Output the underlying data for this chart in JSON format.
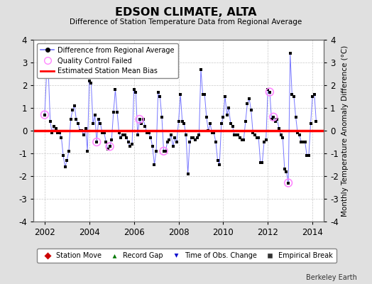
{
  "title": "EDSON CLIMATE, ALTA",
  "subtitle": "Difference of Station Temperature Data from Regional Average",
  "ylabel_right": "Monthly Temperature Anomaly Difference (°C)",
  "ylim": [
    -4,
    4
  ],
  "xlim": [
    2001.5,
    2014.5
  ],
  "bias_value": 0.0,
  "background_color": "#e0e0e0",
  "plot_bg_color": "#ffffff",
  "grid_color": "#c8c8c8",
  "line_color": "#7777ff",
  "dot_color": "#000000",
  "bias_color": "#ff0000",
  "qc_color": "#ff88ff",
  "watermark": "Berkeley Earth",
  "xticks": [
    2002,
    2004,
    2006,
    2008,
    2010,
    2012,
    2014
  ],
  "yticks": [
    -4,
    -3,
    -2,
    -1,
    0,
    1,
    2,
    3,
    4
  ],
  "monthly_data": [
    [
      2002.0,
      0.7
    ],
    [
      2002.083,
      2.4
    ],
    [
      2002.167,
      2.6
    ],
    [
      2002.25,
      0.4
    ],
    [
      2002.333,
      -0.1
    ],
    [
      2002.417,
      0.2
    ],
    [
      2002.5,
      0.1
    ],
    [
      2002.583,
      -0.1
    ],
    [
      2002.667,
      -0.1
    ],
    [
      2002.75,
      -0.3
    ],
    [
      2002.833,
      -1.1
    ],
    [
      2002.917,
      -1.6
    ],
    [
      2003.0,
      -1.3
    ],
    [
      2003.083,
      -0.9
    ],
    [
      2003.167,
      0.5
    ],
    [
      2003.25,
      0.9
    ],
    [
      2003.333,
      1.1
    ],
    [
      2003.417,
      0.5
    ],
    [
      2003.5,
      0.3
    ],
    [
      2003.583,
      0.0
    ],
    [
      2003.667,
      0.0
    ],
    [
      2003.75,
      -0.2
    ],
    [
      2003.833,
      0.1
    ],
    [
      2003.917,
      -0.9
    ],
    [
      2004.0,
      2.2
    ],
    [
      2004.083,
      2.1
    ],
    [
      2004.167,
      0.3
    ],
    [
      2004.25,
      0.7
    ],
    [
      2004.333,
      -0.5
    ],
    [
      2004.417,
      0.5
    ],
    [
      2004.5,
      0.3
    ],
    [
      2004.583,
      -0.1
    ],
    [
      2004.667,
      -0.1
    ],
    [
      2004.75,
      -0.5
    ],
    [
      2004.833,
      -0.8
    ],
    [
      2004.917,
      -0.7
    ],
    [
      2005.0,
      -0.4
    ],
    [
      2005.083,
      0.8
    ],
    [
      2005.167,
      1.8
    ],
    [
      2005.25,
      0.8
    ],
    [
      2005.333,
      -0.1
    ],
    [
      2005.417,
      -0.3
    ],
    [
      2005.5,
      -0.2
    ],
    [
      2005.583,
      -0.2
    ],
    [
      2005.667,
      -0.3
    ],
    [
      2005.75,
      -0.5
    ],
    [
      2005.833,
      -0.7
    ],
    [
      2005.917,
      -0.6
    ],
    [
      2006.0,
      1.8
    ],
    [
      2006.083,
      1.7
    ],
    [
      2006.167,
      -0.2
    ],
    [
      2006.25,
      0.5
    ],
    [
      2006.333,
      0.3
    ],
    [
      2006.417,
      0.5
    ],
    [
      2006.5,
      0.2
    ],
    [
      2006.583,
      -0.1
    ],
    [
      2006.667,
      -0.1
    ],
    [
      2006.75,
      -0.3
    ],
    [
      2006.833,
      -0.7
    ],
    [
      2006.917,
      -1.5
    ],
    [
      2007.0,
      -0.9
    ],
    [
      2007.083,
      1.7
    ],
    [
      2007.167,
      1.5
    ],
    [
      2007.25,
      0.6
    ],
    [
      2007.333,
      -0.9
    ],
    [
      2007.417,
      -0.9
    ],
    [
      2007.5,
      -0.5
    ],
    [
      2007.583,
      -0.4
    ],
    [
      2007.667,
      -0.2
    ],
    [
      2007.75,
      -0.7
    ],
    [
      2007.833,
      -0.3
    ],
    [
      2007.917,
      -0.5
    ],
    [
      2008.0,
      0.4
    ],
    [
      2008.083,
      1.6
    ],
    [
      2008.167,
      0.4
    ],
    [
      2008.25,
      0.3
    ],
    [
      2008.333,
      -0.2
    ],
    [
      2008.417,
      -1.9
    ],
    [
      2008.5,
      -0.5
    ],
    [
      2008.583,
      -0.3
    ],
    [
      2008.667,
      -0.3
    ],
    [
      2008.75,
      -0.4
    ],
    [
      2008.833,
      -0.3
    ],
    [
      2008.917,
      -0.2
    ],
    [
      2009.0,
      2.7
    ],
    [
      2009.083,
      1.6
    ],
    [
      2009.167,
      1.6
    ],
    [
      2009.25,
      0.6
    ],
    [
      2009.333,
      0.0
    ],
    [
      2009.417,
      0.3
    ],
    [
      2009.5,
      -0.1
    ],
    [
      2009.583,
      -0.1
    ],
    [
      2009.667,
      -0.5
    ],
    [
      2009.75,
      -1.3
    ],
    [
      2009.833,
      -1.5
    ],
    [
      2009.917,
      0.3
    ],
    [
      2010.0,
      0.6
    ],
    [
      2010.083,
      1.5
    ],
    [
      2010.167,
      0.7
    ],
    [
      2010.25,
      1.0
    ],
    [
      2010.333,
      0.3
    ],
    [
      2010.417,
      0.2
    ],
    [
      2010.5,
      -0.2
    ],
    [
      2010.583,
      -0.2
    ],
    [
      2010.667,
      -0.2
    ],
    [
      2010.75,
      -0.3
    ],
    [
      2010.833,
      -0.4
    ],
    [
      2010.917,
      -0.4
    ],
    [
      2011.0,
      0.4
    ],
    [
      2011.083,
      1.2
    ],
    [
      2011.167,
      1.4
    ],
    [
      2011.25,
      0.9
    ],
    [
      2011.333,
      -0.1
    ],
    [
      2011.417,
      -0.2
    ],
    [
      2011.5,
      -0.3
    ],
    [
      2011.583,
      -0.3
    ],
    [
      2011.667,
      -1.4
    ],
    [
      2011.75,
      -1.4
    ],
    [
      2011.833,
      -0.5
    ],
    [
      2011.917,
      -0.4
    ],
    [
      2012.0,
      1.8
    ],
    [
      2012.083,
      1.7
    ],
    [
      2012.167,
      0.5
    ],
    [
      2012.25,
      0.6
    ],
    [
      2012.333,
      0.4
    ],
    [
      2012.417,
      0.5
    ],
    [
      2012.5,
      0.1
    ],
    [
      2012.583,
      -0.2
    ],
    [
      2012.667,
      -0.3
    ],
    [
      2012.75,
      -1.7
    ],
    [
      2012.833,
      -1.8
    ],
    [
      2012.917,
      -2.3
    ],
    [
      2013.0,
      3.4
    ],
    [
      2013.083,
      1.6
    ],
    [
      2013.167,
      1.5
    ],
    [
      2013.25,
      0.6
    ],
    [
      2013.333,
      -0.1
    ],
    [
      2013.417,
      -0.2
    ],
    [
      2013.5,
      -0.5
    ],
    [
      2013.583,
      -0.5
    ],
    [
      2013.667,
      -0.5
    ],
    [
      2013.75,
      -1.1
    ],
    [
      2013.833,
      -1.1
    ],
    [
      2013.917,
      0.3
    ],
    [
      2014.0,
      1.5
    ],
    [
      2014.083,
      1.6
    ],
    [
      2014.167,
      0.4
    ]
  ],
  "qc_failed_points": [
    [
      2002.0,
      0.7
    ],
    [
      2004.333,
      -0.5
    ],
    [
      2004.917,
      -0.7
    ],
    [
      2006.25,
      0.5
    ],
    [
      2007.333,
      -0.9
    ],
    [
      2012.083,
      1.7
    ],
    [
      2012.25,
      0.6
    ],
    [
      2012.917,
      -2.3
    ]
  ]
}
